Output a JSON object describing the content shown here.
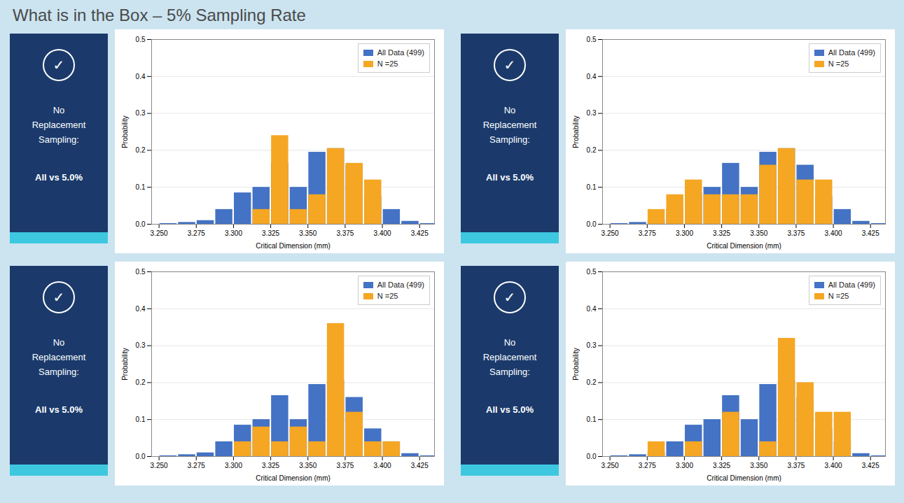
{
  "chart_data": [
    {
      "type": "bar",
      "title": "What is in the Box – 5% Sampling Rate",
      "xlabel": "Critical Dimension (mm)",
      "ylabel": "Probability",
      "annotations": [
        "✓",
        "No\nReplacement\nSampling:",
        "All vs 5.0%"
      ],
      "x": [
        3.25625,
        3.26875,
        3.28125,
        3.29375,
        3.30625,
        3.31875,
        3.33125,
        3.34375,
        3.35625,
        3.36875,
        3.38125,
        3.39375,
        3.40625,
        3.41875,
        3.43125
      ],
      "series": [
        {
          "name": "All Data (499)",
          "color": "#4472c4",
          "values": [
            0.002,
            0.005,
            0.01,
            0.04,
            0.085,
            0.1,
            0.165,
            0.1,
            0.195,
            0.205,
            0.16,
            0.075,
            0.04,
            0.008,
            0.002
          ]
        },
        {
          "name": "N =25",
          "color": "#f5a623",
          "values": [
            0.0,
            0.0,
            0.0,
            0.0,
            0.0,
            0.04,
            0.24,
            0.04,
            0.08,
            0.205,
            0.165,
            0.12,
            0.0,
            0.0,
            0.0
          ]
        }
      ],
      "xlim": [
        3.245,
        3.435
      ],
      "xticks": [
        {
          "value": 3.25,
          "label": "3.250"
        },
        3.275,
        {
          "value": 3.3,
          "label": "3.300"
        },
        3.325,
        {
          "value": 3.35,
          "label": "3.350"
        },
        3.375,
        {
          "value": 3.4,
          "label": "3.400"
        },
        3.425
      ],
      "ylim": [
        0.0,
        0.5
      ],
      "yticks": [
        {
          "value": 0.0,
          "label": "0.0"
        },
        0.1,
        0.2,
        0.3,
        0.4,
        0.5
      ],
      "grid": true,
      "legend": "upper right",
      "stacked": false
    },
    {
      "type": "bar",
      "xlabel": "Critical Dimension (mm)",
      "ylabel": "Probability",
      "annotations": [
        "✓",
        "No\nReplacement\nSampling:",
        "All vs 5.0%"
      ],
      "x": [
        3.25625,
        3.26875,
        3.28125,
        3.29375,
        3.30625,
        3.31875,
        3.33125,
        3.34375,
        3.35625,
        3.36875,
        3.38125,
        3.39375,
        3.40625,
        3.41875,
        3.43125
      ],
      "series": [
        {
          "name": "All Data (499)",
          "color": "#4472c4",
          "values": [
            0.002,
            0.005,
            0.01,
            0.04,
            0.085,
            0.1,
            0.165,
            0.1,
            0.195,
            0.205,
            0.16,
            0.075,
            0.04,
            0.008,
            0.002
          ]
        },
        {
          "name": "N =25",
          "color": "#f5a623",
          "values": [
            0.0,
            0.0,
            0.04,
            0.08,
            0.12,
            0.08,
            0.08,
            0.08,
            0.16,
            0.205,
            0.12,
            0.12,
            0.0,
            0.0,
            0.0
          ]
        }
      ],
      "xlim": [
        3.245,
        3.435
      ],
      "xticks": [
        {
          "value": 3.25,
          "label": "3.250"
        },
        3.275,
        {
          "value": 3.3,
          "label": "3.300"
        },
        3.325,
        {
          "value": 3.35,
          "label": "3.350"
        },
        3.375,
        {
          "value": 3.4,
          "label": "3.400"
        },
        3.425
      ],
      "ylim": [
        0.0,
        0.5
      ],
      "yticks": [
        {
          "value": 0.0,
          "label": "0.0"
        },
        0.1,
        0.2,
        0.3,
        0.4,
        0.5
      ],
      "grid": true,
      "legend": "upper right",
      "stacked": false
    },
    {
      "type": "bar",
      "xlabel": "Critical Dimension (mm)",
      "ylabel": "Probability",
      "annotations": [
        "✓",
        "No\nReplacement\nSampling:",
        "All vs 5.0%"
      ],
      "x": [
        3.25625,
        3.26875,
        3.28125,
        3.29375,
        3.30625,
        3.31875,
        3.33125,
        3.34375,
        3.35625,
        3.36875,
        3.38125,
        3.39375,
        3.40625,
        3.41875,
        3.43125
      ],
      "series": [
        {
          "name": "All Data (499)",
          "color": "#4472c4",
          "values": [
            0.002,
            0.005,
            0.01,
            0.04,
            0.085,
            0.1,
            0.165,
            0.1,
            0.195,
            0.205,
            0.16,
            0.075,
            0.04,
            0.008,
            0.002
          ]
        },
        {
          "name": "N =25",
          "color": "#f5a623",
          "values": [
            0.0,
            0.0,
            0.0,
            0.0,
            0.04,
            0.08,
            0.04,
            0.08,
            0.04,
            0.36,
            0.12,
            0.04,
            0.04,
            0.0,
            0.0
          ]
        }
      ],
      "xlim": [
        3.245,
        3.435
      ],
      "xticks": [
        {
          "value": 3.25,
          "label": "3.250"
        },
        3.275,
        {
          "value": 3.3,
          "label": "3.300"
        },
        3.325,
        {
          "value": 3.35,
          "label": "3.350"
        },
        3.375,
        {
          "value": 3.4,
          "label": "3.400"
        },
        3.425
      ],
      "ylim": [
        0.0,
        0.5
      ],
      "yticks": [
        {
          "value": 0.0,
          "label": "0.0"
        },
        0.1,
        0.2,
        0.3,
        0.4,
        0.5
      ],
      "grid": true,
      "legend": "upper right",
      "stacked": false
    },
    {
      "type": "bar",
      "xlabel": "Critical Dimension (mm)",
      "ylabel": "Probability",
      "annotations": [
        "✓",
        "No\nReplacement\nSampling:",
        "All vs 5.0%"
      ],
      "x": [
        3.25625,
        3.26875,
        3.28125,
        3.29375,
        3.30625,
        3.31875,
        3.33125,
        3.34375,
        3.35625,
        3.36875,
        3.38125,
        3.39375,
        3.40625,
        3.41875,
        3.43125
      ],
      "series": [
        {
          "name": "All Data (499)",
          "color": "#4472c4",
          "values": [
            0.002,
            0.005,
            0.01,
            0.04,
            0.085,
            0.1,
            0.165,
            0.1,
            0.195,
            0.205,
            0.16,
            0.075,
            0.04,
            0.008,
            0.002
          ]
        },
        {
          "name": "N =25",
          "color": "#f5a623",
          "values": [
            0.0,
            0.0,
            0.04,
            0.0,
            0.04,
            0.0,
            0.12,
            0.0,
            0.04,
            0.32,
            0.2,
            0.12,
            0.12,
            0.0,
            0.0
          ]
        }
      ],
      "xlim": [
        3.245,
        3.435
      ],
      "xticks": [
        {
          "value": 3.25,
          "label": "3.250"
        },
        3.275,
        {
          "value": 3.3,
          "label": "3.300"
        },
        3.325,
        {
          "value": 3.35,
          "label": "3.350"
        },
        3.375,
        {
          "value": 3.4,
          "label": "3.400"
        },
        3.425
      ],
      "ylim": [
        0.0,
        0.5
      ],
      "yticks": [
        {
          "value": 0.0,
          "label": "0.0"
        },
        0.1,
        0.2,
        0.3,
        0.4,
        0.5
      ],
      "grid": true,
      "legend": "upper right",
      "stacked": false
    }
  ]
}
